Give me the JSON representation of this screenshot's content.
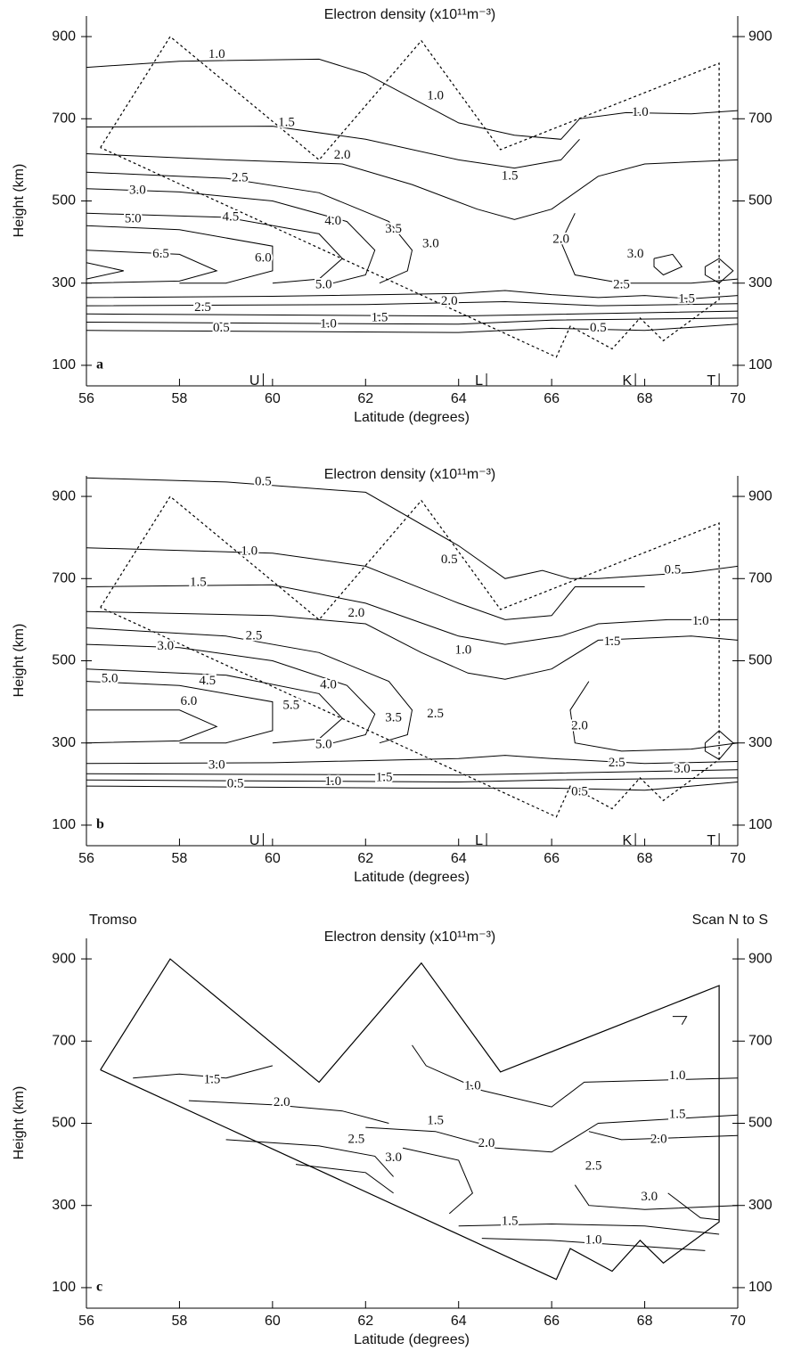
{
  "chart_data": [
    {
      "type": "contour",
      "title": "Electron density (x10¹¹m⁻³)",
      "xlabel": "Latitude (degrees)",
      "ylabel": "Height (km)",
      "panel_label": "a",
      "xlim": [
        56,
        70
      ],
      "ylim": [
        50,
        950
      ],
      "xticks": [
        56,
        58,
        60,
        62,
        64,
        66,
        68,
        70
      ],
      "yticks": [
        100,
        300,
        500,
        700,
        900
      ],
      "stations": [
        {
          "label": "U",
          "lat": 59.8
        },
        {
          "label": "L",
          "lat": 64.6
        },
        {
          "label": "K",
          "lat": 67.8
        },
        {
          "label": "T",
          "lat": 69.6
        }
      ],
      "contour_labels": [
        {
          "value": 1.0,
          "label": "1.0"
        },
        {
          "value": 1.5,
          "label": "1.5"
        },
        {
          "value": 2.0,
          "label": "2.0"
        },
        {
          "value": 2.5,
          "label": "2.5"
        },
        {
          "value": 3.0,
          "label": "3.0"
        },
        {
          "value": 5.0,
          "label": "5.0"
        },
        {
          "value": 4.5,
          "label": "4.5"
        },
        {
          "value": 4.0,
          "label": "4.0"
        },
        {
          "value": 3.5,
          "label": "3.5"
        },
        {
          "value": 3.0,
          "label": "3.0"
        },
        {
          "value": 6.5,
          "label": "6.5"
        },
        {
          "value": 6.0,
          "label": "6.0"
        },
        {
          "value": 5.0,
          "label": "5.0"
        },
        {
          "value": 2.5,
          "label": "2.5"
        },
        {
          "value": 2.0,
          "label": "2.0"
        },
        {
          "value": 1.5,
          "label": "1.5"
        },
        {
          "value": 1.0,
          "label": "1.0"
        },
        {
          "value": 0.5,
          "label": "0.5"
        },
        {
          "value": 1.0,
          "label": "1.0"
        },
        {
          "value": 1.5,
          "label": "1.5"
        },
        {
          "value": 1.0,
          "label": "1.0"
        },
        {
          "value": 2.0,
          "label": "2.0"
        },
        {
          "value": 3.0,
          "label": "3.0"
        },
        {
          "value": 2.5,
          "label": "2.5"
        },
        {
          "value": 1.5,
          "label": "1.5"
        },
        {
          "value": 0.5,
          "label": "0.5"
        }
      ]
    },
    {
      "type": "contour",
      "title": "Electron density (x10¹¹m⁻³)",
      "xlabel": "Latitude (degrees)",
      "ylabel": "Height (km)",
      "panel_label": "b",
      "xlim": [
        56,
        70
      ],
      "ylim": [
        50,
        950
      ],
      "xticks": [
        56,
        58,
        60,
        62,
        64,
        66,
        68,
        70
      ],
      "yticks": [
        100,
        300,
        500,
        700,
        900
      ],
      "stations": [
        {
          "label": "U",
          "lat": 59.8
        },
        {
          "label": "L",
          "lat": 64.6
        },
        {
          "label": "K",
          "lat": 67.8
        },
        {
          "label": "T",
          "lat": 69.6
        }
      ],
      "contour_labels": [
        {
          "value": 0.5,
          "label": "0.5"
        },
        {
          "value": 1.0,
          "label": "1.0"
        },
        {
          "value": 1.5,
          "label": "1.5"
        },
        {
          "value": 2.0,
          "label": "2.0"
        },
        {
          "value": 2.5,
          "label": "2.5"
        },
        {
          "value": 3.0,
          "label": "3.0"
        },
        {
          "value": 5.0,
          "label": "5.0"
        },
        {
          "value": 4.5,
          "label": "4.5"
        },
        {
          "value": 4.0,
          "label": "4.0"
        },
        {
          "value": 5.5,
          "label": "5.5"
        },
        {
          "value": 6.0,
          "label": "6.0"
        },
        {
          "value": 3.5,
          "label": "3.5"
        },
        {
          "value": 2.5,
          "label": "2.5"
        },
        {
          "value": 5.0,
          "label": "5.0"
        },
        {
          "value": 3.0,
          "label": "3.0"
        },
        {
          "value": 1.5,
          "label": "1.5"
        },
        {
          "value": 1.0,
          "label": "1.0"
        },
        {
          "value": 0.5,
          "label": "0.5"
        },
        {
          "value": 0.5,
          "label": "0.5"
        },
        {
          "value": 1.0,
          "label": "1.0"
        },
        {
          "value": 0.5,
          "label": "0.5"
        },
        {
          "value": 1.0,
          "label": "1.0"
        },
        {
          "value": 1.5,
          "label": "1.5"
        },
        {
          "value": 2.0,
          "label": "2.0"
        },
        {
          "value": 2.5,
          "label": "2.5"
        },
        {
          "value": 3.0,
          "label": "3.0"
        },
        {
          "value": 0.5,
          "label": "0.5"
        }
      ]
    },
    {
      "type": "contour",
      "title": "Electron density (x10¹¹m⁻³)",
      "xlabel": "Latitude (degrees)",
      "ylabel": "Height (km)",
      "panel_label": "c",
      "annotations": [
        "Tromso",
        "Scan N to S"
      ],
      "xlim": [
        56,
        70
      ],
      "ylim": [
        50,
        950
      ],
      "xticks": [
        56,
        58,
        60,
        62,
        64,
        66,
        68,
        70
      ],
      "yticks": [
        100,
        300,
        500,
        700,
        900
      ],
      "contour_labels": [
        {
          "value": 1.5,
          "label": "1.5"
        },
        {
          "value": 2.0,
          "label": "2.0"
        },
        {
          "value": 2.5,
          "label": "2.5"
        },
        {
          "value": 3.0,
          "label": "3.0"
        },
        {
          "value": 1.0,
          "label": "1.0"
        },
        {
          "value": 1.5,
          "label": "1.5"
        },
        {
          "value": 2.0,
          "label": "2.0"
        },
        {
          "value": 1.0,
          "label": "1.0"
        },
        {
          "value": 1.5,
          "label": "1.5"
        },
        {
          "value": 2.0,
          "label": "2.0"
        },
        {
          "value": 2.5,
          "label": "2.5"
        },
        {
          "value": 3.0,
          "label": "3.0"
        },
        {
          "value": 1.5,
          "label": "1.5"
        },
        {
          "value": 1.0,
          "label": "1.0"
        }
      ]
    }
  ]
}
